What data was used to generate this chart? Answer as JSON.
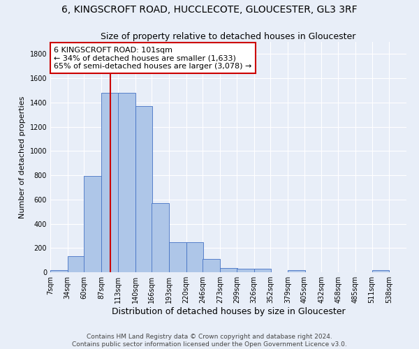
{
  "title": "6, KINGSCROFT ROAD, HUCCLECOTE, GLOUCESTER, GL3 3RF",
  "subtitle": "Size of property relative to detached houses in Gloucester",
  "xlabel": "Distribution of detached houses by size in Gloucester",
  "ylabel": "Number of detached properties",
  "bin_labels": [
    "7sqm",
    "34sqm",
    "60sqm",
    "87sqm",
    "113sqm",
    "140sqm",
    "166sqm",
    "193sqm",
    "220sqm",
    "246sqm",
    "273sqm",
    "299sqm",
    "326sqm",
    "352sqm",
    "379sqm",
    "405sqm",
    "432sqm",
    "458sqm",
    "485sqm",
    "511sqm",
    "538sqm"
  ],
  "bin_edges": [
    7,
    34,
    60,
    87,
    113,
    140,
    166,
    193,
    220,
    246,
    273,
    299,
    326,
    352,
    379,
    405,
    432,
    458,
    485,
    511,
    538
  ],
  "bar_heights": [
    15,
    130,
    795,
    1480,
    1480,
    1370,
    570,
    250,
    250,
    110,
    35,
    30,
    30,
    0,
    18,
    0,
    0,
    0,
    0,
    17,
    0
  ],
  "bar_color": "#aec6e8",
  "bar_edge_color": "#4472c4",
  "property_sqm": 101,
  "vline_color": "#cc0000",
  "annotation_line1": "6 KINGSCROFT ROAD: 101sqm",
  "annotation_line2": "← 34% of detached houses are smaller (1,633)",
  "annotation_line3": "65% of semi-detached houses are larger (3,078) →",
  "annotation_box_color": "#ffffff",
  "annotation_box_edge_color": "#cc0000",
  "ylim": [
    0,
    1900
  ],
  "yticks": [
    0,
    200,
    400,
    600,
    800,
    1000,
    1200,
    1400,
    1600,
    1800
  ],
  "background_color": "#e8eef8",
  "grid_color": "#ffffff",
  "footer_text": "Contains HM Land Registry data © Crown copyright and database right 2024.\nContains public sector information licensed under the Open Government Licence v3.0.",
  "title_fontsize": 10,
  "subtitle_fontsize": 9,
  "xlabel_fontsize": 9,
  "ylabel_fontsize": 8,
  "tick_fontsize": 7,
  "annotation_fontsize": 8,
  "footer_fontsize": 6.5
}
